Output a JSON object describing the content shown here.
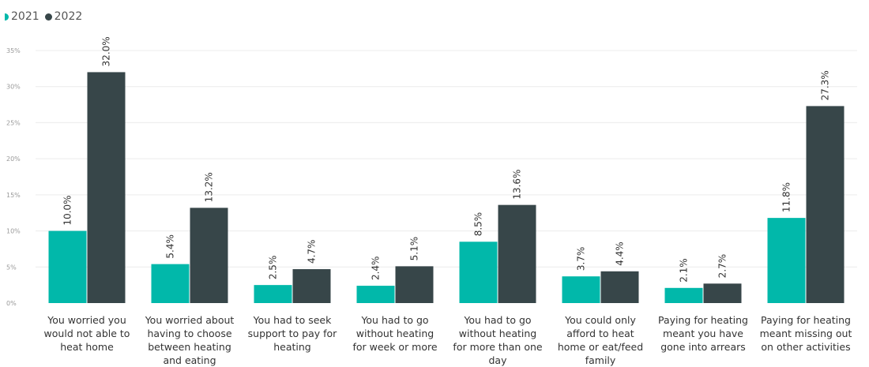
{
  "legend": [
    {
      "label": "2021",
      "color": "#01B8AA"
    },
    {
      "label": "2022",
      "color": "#374649"
    }
  ],
  "chart_data": {
    "type": "bar",
    "categories": [
      [
        "You worried you",
        "would not able to",
        "heat home"
      ],
      [
        "You worried about",
        "having to choose",
        "between heating",
        "and eating"
      ],
      [
        "You had to seek",
        "support to pay for",
        "heating"
      ],
      [
        "You had to go",
        "without heating",
        "for week or more"
      ],
      [
        "You had to go",
        "without heating",
        "for more than one",
        "day"
      ],
      [
        "You could only",
        "afford to heat",
        "home or eat/feed",
        "family"
      ],
      [
        "Paying for heating",
        "meant you have",
        "gone into arrears"
      ],
      [
        "Paying for heating",
        "meant missing out",
        "on other activities"
      ]
    ],
    "series": [
      {
        "name": "2021",
        "color": "#01B8AA",
        "values": [
          10.0,
          5.4,
          2.5,
          2.4,
          8.5,
          3.7,
          2.1,
          11.8
        ]
      },
      {
        "name": "2022",
        "color": "#374649",
        "values": [
          32.0,
          13.2,
          4.7,
          5.1,
          13.6,
          4.4,
          2.7,
          27.3
        ]
      }
    ],
    "ylim": [
      0,
      35
    ],
    "yticks": [
      0,
      5,
      10,
      15,
      20,
      25,
      30,
      35
    ],
    "tick_suffix": "%",
    "grid": true,
    "legend_position": "top-left"
  }
}
